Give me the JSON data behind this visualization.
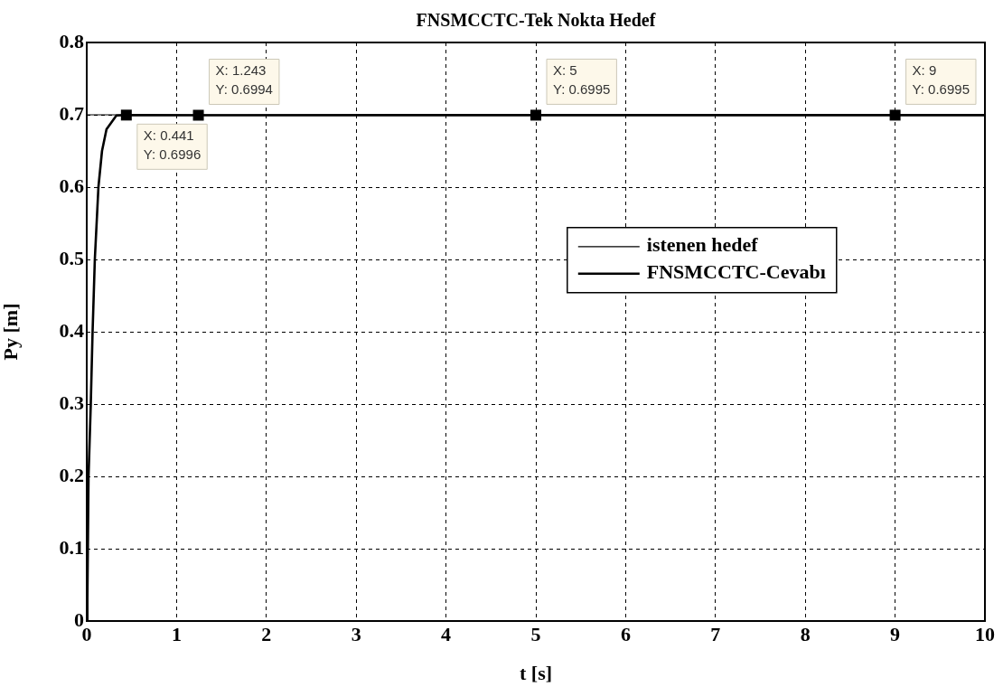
{
  "chart_data": {
    "type": "line",
    "title": "FNSMCCTC-Tek Nokta Hedef",
    "xlabel": "t [s]",
    "ylabel": "Py [m]",
    "xlim": [
      0,
      10
    ],
    "ylim": [
      0,
      0.8
    ],
    "xticks": [
      0,
      1,
      2,
      3,
      4,
      5,
      6,
      7,
      8,
      9,
      10
    ],
    "yticks": [
      0,
      0.1,
      0.2,
      0.3,
      0.4,
      0.5,
      0.6,
      0.7,
      0.8
    ],
    "grid": true,
    "legend": "right",
    "line_style": "solid",
    "marker": "none",
    "series": [
      {
        "name": "istenen hedef",
        "color": "#000000",
        "x": [
          0,
          10
        ],
        "values": [
          0.7,
          0.7
        ]
      },
      {
        "name": "FNSMCCTC-Cevabı",
        "color": "#000000",
        "x": [
          0,
          0.007,
          0.02,
          0.045,
          0.065,
          0.09,
          0.13,
          0.17,
          0.22,
          0.33,
          0.441,
          1.243,
          5,
          9,
          10
        ],
        "values": [
          0,
          0.03,
          0.2,
          0.3,
          0.4,
          0.5,
          0.6,
          0.65,
          0.68,
          0.699,
          0.6996,
          0.6994,
          0.6995,
          0.6995,
          0.6995
        ]
      }
    ],
    "annotations": [
      {
        "text": "X: 0.441\nY: 0.6996",
        "x": 0.441,
        "y": 0.6996
      },
      {
        "text": "X: 1.243\nY: 0.6994",
        "x": 1.243,
        "y": 0.6994
      },
      {
        "text": "X: 5\nY: 0.6995",
        "x": 5,
        "y": 0.6995
      },
      {
        "text": "X: 9\nY: 0.6995",
        "x": 9,
        "y": 0.6995
      }
    ]
  }
}
